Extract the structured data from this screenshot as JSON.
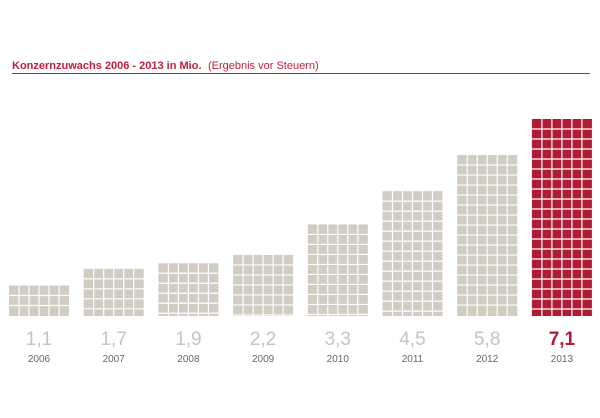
{
  "header": {
    "title": "Konzernzuwachs 2006 - 2013 in Mio.",
    "subtitle": "(Ergebnis vor Steuern)"
  },
  "colors": {
    "accent": "#c0203c",
    "bar": "#d1cdc3",
    "bar_highlight": "#b01c35",
    "value_label": "#c8c4ba",
    "year_label": "#666666"
  },
  "chart_data": {
    "type": "bar",
    "title": "Konzernzuwachs 2006 - 2013 in Mio.",
    "subtitle": "(Ergebnis vor Steuern)",
    "categories": [
      "2006",
      "2007",
      "2008",
      "2009",
      "2010",
      "2011",
      "2012",
      "2013"
    ],
    "values": [
      1.1,
      1.7,
      1.9,
      2.2,
      3.3,
      4.5,
      5.8,
      7.1
    ],
    "value_labels": [
      "1,1",
      "1,7",
      "1,9",
      "2,2",
      "3,3",
      "4,5",
      "5,8",
      "7,1"
    ],
    "highlight_index": 7,
    "xlabel": "",
    "ylabel": "",
    "ylim": [
      0,
      7.1
    ],
    "grid": false,
    "legend": "none"
  }
}
